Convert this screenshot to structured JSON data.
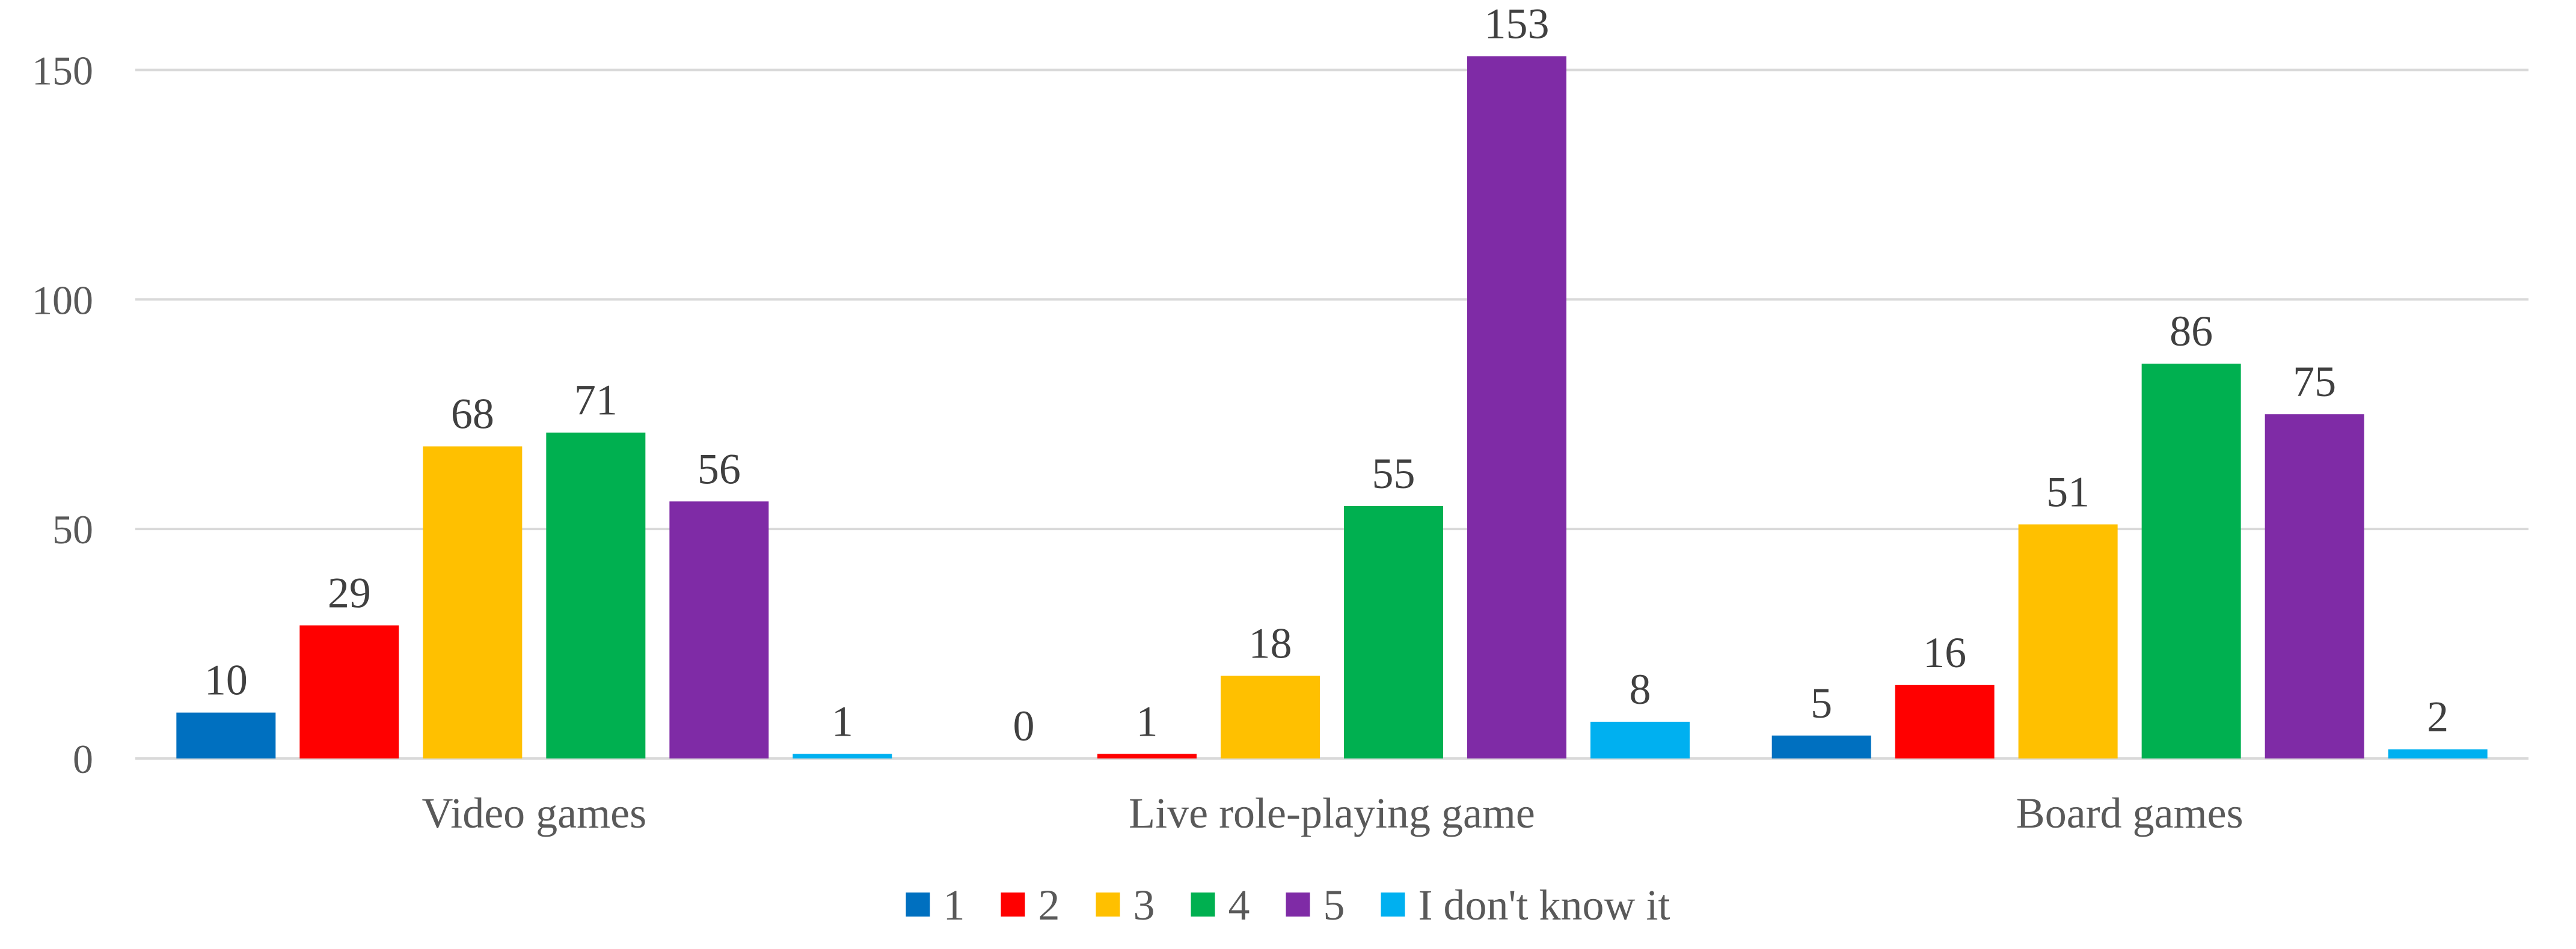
{
  "chart_data": {
    "type": "bar",
    "title": "",
    "xlabel": "",
    "ylabel": "",
    "categories": [
      "Video games",
      "Live role-playing game",
      "Board games"
    ],
    "ylim": [
      0,
      160
    ],
    "yticks": [
      0,
      50,
      100,
      150
    ],
    "grid": true,
    "legend_position": "bottom",
    "series": [
      {
        "name": "1",
        "color": "#0070C0",
        "values": [
          10,
          0,
          5
        ]
      },
      {
        "name": "2",
        "color": "#FF0000",
        "values": [
          29,
          1,
          16
        ]
      },
      {
        "name": "3",
        "color": "#FFC000",
        "values": [
          68,
          18,
          51
        ]
      },
      {
        "name": "4",
        "color": "#00B050",
        "values": [
          71,
          55,
          86
        ]
      },
      {
        "name": "5",
        "color": "#7F2BA6",
        "values": [
          56,
          153,
          75
        ]
      },
      {
        "name": "I don't know it",
        "color": "#00B0F0",
        "values": [
          1,
          8,
          2
        ]
      }
    ]
  }
}
